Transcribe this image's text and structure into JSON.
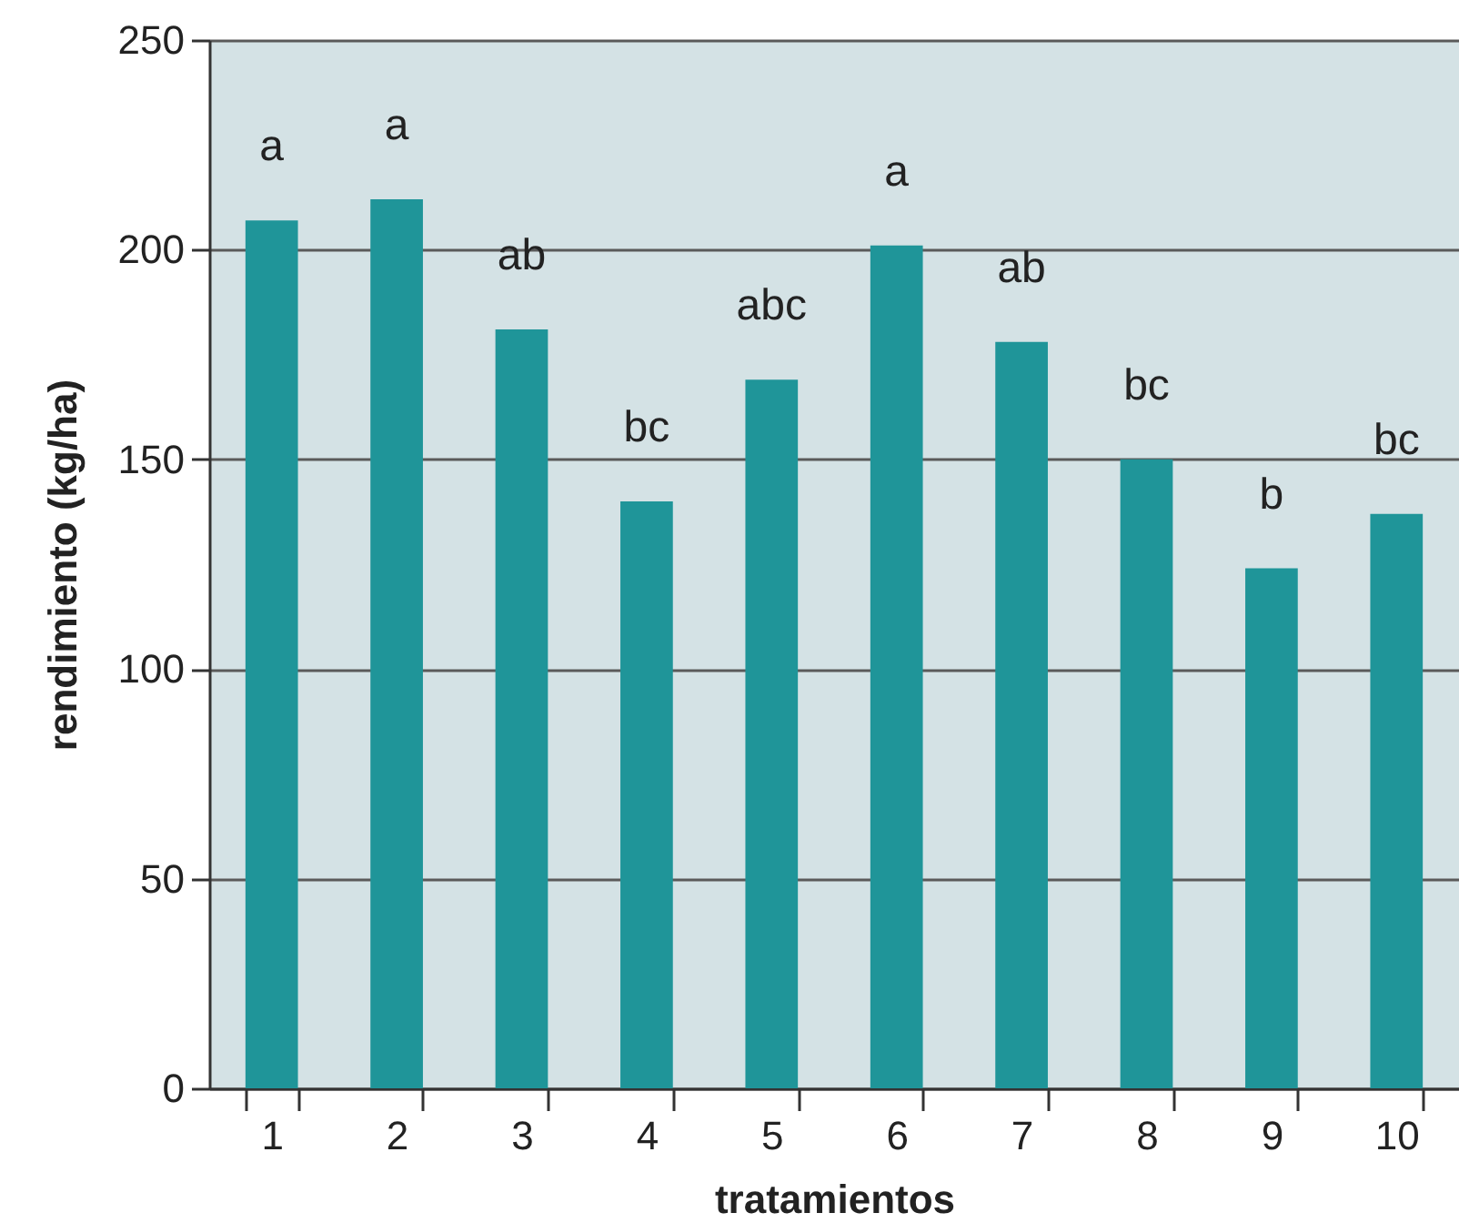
{
  "chart_data": {
    "type": "bar",
    "xlabel": "tratamientos",
    "ylabel": "rendimiento (kg/ha)",
    "categories": [
      "1",
      "2",
      "3",
      "4",
      "5",
      "6",
      "7",
      "8",
      "9",
      "10"
    ],
    "values": [
      207,
      212,
      181,
      140,
      169,
      201,
      178,
      150,
      124,
      137
    ],
    "color": "#1f9599",
    "ylim": [
      0,
      250
    ],
    "yticks": [
      0,
      50,
      100,
      150,
      200,
      250
    ],
    "grid": "y",
    "annotations": [
      {
        "text": "a",
        "x": "1",
        "y": 207
      },
      {
        "text": "a",
        "x": "2",
        "y": 212
      },
      {
        "text": "ab",
        "x": "3",
        "y": 181
      },
      {
        "text": "bc",
        "x": "4",
        "y": 140
      },
      {
        "text": "abc",
        "x": "5",
        "y": 169
      },
      {
        "text": "a",
        "x": "6",
        "y": 201
      },
      {
        "text": "ab",
        "x": "7",
        "y": 178
      },
      {
        "text": "bc",
        "x": "8",
        "y": 150
      },
      {
        "text": "b",
        "x": "9",
        "y": 124
      },
      {
        "text": "bc",
        "x": "10",
        "y": 137
      }
    ]
  }
}
